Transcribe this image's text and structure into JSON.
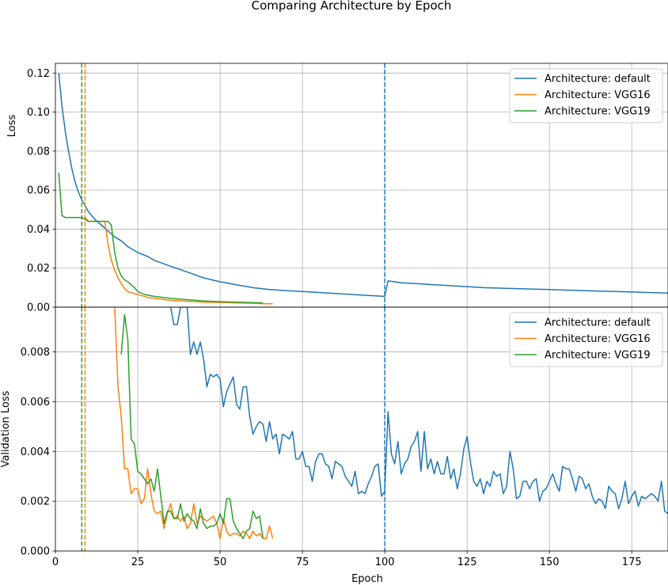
{
  "figure_title": "Comparing Architecture by Epoch",
  "colors": {
    "default": "#1f77b4",
    "VGG16": "#ff7f0e",
    "VGG19": "#2ca02c",
    "grid": "#b0b0b0",
    "axis": "#000000"
  },
  "chart_data": [
    {
      "type": "line",
      "ylabel": "Loss",
      "xlabel": "",
      "xlim": [
        0,
        186
      ],
      "ylim": [
        0,
        0.125
      ],
      "xticks": [
        0,
        25,
        50,
        75,
        100,
        125,
        150,
        175
      ],
      "yticks": [
        0.0,
        0.02,
        0.04,
        0.06,
        0.08,
        0.1,
        0.12
      ],
      "ytick_labels": [
        "0.00",
        "0.02",
        "0.04",
        "0.06",
        "0.08",
        "0.10",
        "0.12"
      ],
      "grid": true,
      "legend_position": "upper right",
      "vlines": [
        {
          "x": 8,
          "series": "VGG19",
          "style": "dashed"
        },
        {
          "x": 9,
          "series": "VGG16",
          "style": "dashed"
        },
        {
          "x": 100,
          "series": "default",
          "style": "dashed"
        }
      ],
      "series": [
        {
          "name": "Architecture: default",
          "color_key": "default",
          "x": [
            1,
            2,
            3,
            4,
            5,
            6,
            7,
            8,
            9,
            10,
            12,
            14,
            16,
            18,
            20,
            22,
            25,
            28,
            30,
            35,
            40,
            45,
            50,
            55,
            60,
            65,
            70,
            75,
            80,
            85,
            90,
            95,
            100,
            101,
            105,
            110,
            115,
            120,
            125,
            130,
            140,
            150,
            160,
            170,
            180,
            186
          ],
          "y": [
            0.12,
            0.103,
            0.09,
            0.08,
            0.071,
            0.064,
            0.059,
            0.055,
            0.052,
            0.049,
            0.045,
            0.042,
            0.039,
            0.036,
            0.034,
            0.031,
            0.028,
            0.026,
            0.024,
            0.021,
            0.018,
            0.015,
            0.013,
            0.0115,
            0.01,
            0.009,
            0.0085,
            0.008,
            0.0075,
            0.007,
            0.0065,
            0.006,
            0.0055,
            0.0135,
            0.0125,
            0.012,
            0.0115,
            0.011,
            0.0105,
            0.01,
            0.0095,
            0.009,
            0.0085,
            0.008,
            0.0075,
            0.0072
          ]
        },
        {
          "name": "Architecture: VGG16",
          "color_key": "VGG16",
          "x": [
            9,
            10,
            12,
            14,
            15,
            16,
            17,
            18,
            19,
            20,
            21,
            22,
            24,
            26,
            28,
            30,
            35,
            40,
            45,
            50,
            55,
            60,
            63,
            66
          ],
          "y": [
            0.046,
            0.044,
            0.044,
            0.044,
            0.044,
            0.032,
            0.024,
            0.019,
            0.015,
            0.012,
            0.0095,
            0.008,
            0.007,
            0.006,
            0.005,
            0.0045,
            0.0035,
            0.003,
            0.0026,
            0.0024,
            0.0022,
            0.002,
            0.0018,
            0.0017
          ]
        },
        {
          "name": "Architecture: VGG19",
          "color_key": "VGG19",
          "x": [
            1,
            2,
            3,
            5,
            7,
            8,
            10,
            12,
            14,
            16,
            17,
            18,
            19,
            20,
            21,
            22,
            24,
            25,
            27,
            30,
            35,
            40,
            45,
            50,
            55,
            60,
            63
          ],
          "y": [
            0.069,
            0.047,
            0.046,
            0.046,
            0.046,
            0.046,
            0.044,
            0.044,
            0.044,
            0.044,
            0.042,
            0.028,
            0.02,
            0.016,
            0.014,
            0.013,
            0.01,
            0.008,
            0.0065,
            0.0055,
            0.0045,
            0.0038,
            0.0032,
            0.0028,
            0.0025,
            0.0023,
            0.0022
          ]
        }
      ]
    },
    {
      "type": "line",
      "ylabel": "Validation Loss",
      "xlabel": "Epoch",
      "xlim": [
        0,
        186
      ],
      "ylim": [
        0,
        0.0098
      ],
      "xticks": [
        0,
        25,
        50,
        75,
        100,
        125,
        150,
        175
      ],
      "yticks": [
        0.0,
        0.002,
        0.004,
        0.006,
        0.008
      ],
      "ytick_labels": [
        "0.000",
        "0.002",
        "0.004",
        "0.006",
        "0.008"
      ],
      "grid": true,
      "legend_position": "upper right",
      "vlines": [
        {
          "x": 8,
          "series": "VGG19",
          "style": "dashed"
        },
        {
          "x": 9,
          "series": "VGG16",
          "style": "dashed"
        },
        {
          "x": 100,
          "series": "default",
          "style": "dashed"
        }
      ],
      "series": [
        {
          "name": "Architecture: default",
          "color_key": "default",
          "x": [
            35,
            36,
            37,
            38,
            39,
            40,
            41,
            42,
            43,
            44,
            45,
            46,
            47,
            48,
            49,
            50,
            51,
            52,
            53,
            54,
            55,
            56,
            57,
            58,
            59,
            60,
            61,
            62,
            63,
            64,
            65,
            66,
            67,
            68,
            69,
            70,
            71,
            72,
            73,
            74,
            75,
            76,
            77,
            78,
            79,
            80,
            81,
            82,
            83,
            84,
            85,
            86,
            87,
            88,
            89,
            90,
            91,
            92,
            93,
            94,
            95,
            96,
            97,
            98,
            99,
            100,
            101,
            102,
            103,
            104,
            105,
            106,
            107,
            108,
            109,
            110,
            111,
            112,
            113,
            114,
            115,
            116,
            117,
            118,
            119,
            120,
            121,
            122,
            123,
            124,
            125,
            126,
            127,
            128,
            129,
            130,
            131,
            132,
            133,
            134,
            135,
            136,
            137,
            138,
            139,
            140,
            141,
            142,
            143,
            144,
            145,
            146,
            147,
            148,
            149,
            150,
            151,
            152,
            153,
            154,
            155,
            156,
            157,
            158,
            159,
            160,
            161,
            162,
            163,
            164,
            165,
            166,
            167,
            168,
            169,
            170,
            171,
            172,
            173,
            174,
            175,
            176,
            177,
            178,
            179,
            180,
            181,
            182,
            183,
            184,
            185,
            186
          ],
          "y": [
            0.0098,
            0.0091,
            0.0091,
            0.0098,
            0.0098,
            0.0098,
            0.0079,
            0.0084,
            0.0079,
            0.0084,
            0.0077,
            0.0066,
            0.0071,
            0.007,
            0.0071,
            0.0069,
            0.0058,
            0.0064,
            0.0067,
            0.007,
            0.0059,
            0.0057,
            0.0066,
            0.0066,
            0.0054,
            0.0047,
            0.005,
            0.0052,
            0.0051,
            0.0044,
            0.0052,
            0.0045,
            0.0047,
            0.0039,
            0.0047,
            0.0046,
            0.0045,
            0.0048,
            0.0037,
            0.0037,
            0.004,
            0.0034,
            0.0034,
            0.0028,
            0.0036,
            0.0039,
            0.0039,
            0.0035,
            0.0034,
            0.0029,
            0.0036,
            0.0035,
            0.0034,
            0.003,
            0.0028,
            0.0026,
            0.0032,
            0.0023,
            0.0024,
            0.0023,
            0.0027,
            0.003,
            0.0034,
            0.0035,
            0.0022,
            0.0024,
            0.0056,
            0.0039,
            0.0035,
            0.0044,
            0.0031,
            0.0035,
            0.0037,
            0.0042,
            0.0044,
            0.0048,
            0.0032,
            0.0048,
            0.0033,
            0.0037,
            0.0031,
            0.0036,
            0.0031,
            0.0031,
            0.0038,
            0.0029,
            0.0033,
            0.0025,
            0.0031,
            0.0041,
            0.0046,
            0.0036,
            0.0028,
            0.0026,
            0.0029,
            0.0023,
            0.0028,
            0.0026,
            0.0032,
            0.003,
            0.0031,
            0.0023,
            0.0026,
            0.004,
            0.0033,
            0.0021,
            0.0022,
            0.0028,
            0.0028,
            0.0025,
            0.0028,
            0.0029,
            0.002,
            0.0024,
            0.0025,
            0.0028,
            0.0031,
            0.0027,
            0.0024,
            0.0034,
            0.0033,
            0.0033,
            0.0029,
            0.0024,
            0.003,
            0.0029,
            0.0025,
            0.0027,
            0.0022,
            0.0019,
            0.0021,
            0.002,
            0.0017,
            0.0026,
            0.0024,
            0.0023,
            0.0017,
            0.0021,
            0.0028,
            0.0019,
            0.0022,
            0.0024,
            0.0018,
            0.0022,
            0.0021,
            0.0022,
            0.0023,
            0.0022,
            0.002,
            0.0028,
            0.0016,
            0.0015
          ]
        },
        {
          "name": "Architecture: VGG16",
          "color_key": "VGG16",
          "x": [
            18,
            19,
            20,
            21,
            22,
            23,
            24,
            25,
            26,
            27,
            28,
            29,
            30,
            31,
            32,
            33,
            34,
            35,
            36,
            37,
            38,
            39,
            40,
            41,
            42,
            43,
            44,
            45,
            46,
            47,
            48,
            49,
            50,
            51,
            52,
            53,
            54,
            55,
            56,
            57,
            58,
            59,
            60,
            61,
            62,
            63,
            64,
            65,
            66
          ],
          "y": [
            0.0098,
            0.0066,
            0.0054,
            0.0033,
            0.0033,
            0.0023,
            0.0025,
            0.0025,
            0.0019,
            0.0021,
            0.0033,
            0.0023,
            0.0016,
            0.0015,
            0.0016,
            0.0009,
            0.0015,
            0.0019,
            0.0013,
            0.0014,
            0.0012,
            0.0014,
            0.0009,
            0.0011,
            0.0019,
            0.0011,
            0.0014,
            0.0013,
            0.0012,
            0.0013,
            0.0014,
            0.0011,
            0.0005,
            0.0013,
            0.0008,
            0.0006,
            0.0007,
            0.0007,
            0.0006,
            0.0008,
            0.0007,
            0.0005,
            0.0008,
            0.0006,
            0.0007,
            0.0005,
            0.0005,
            0.001,
            0.0005
          ]
        },
        {
          "name": "Architecture: VGG19",
          "color_key": "VGG19",
          "x": [
            20,
            21,
            22,
            23,
            24,
            25,
            26,
            27,
            28,
            29,
            30,
            31,
            32,
            33,
            34,
            35,
            36,
            37,
            38,
            39,
            40,
            41,
            42,
            43,
            44,
            45,
            46,
            47,
            48,
            49,
            50,
            51,
            52,
            53,
            54,
            55,
            56,
            57,
            58,
            59,
            60,
            61,
            62,
            63
          ],
          "y": [
            0.0079,
            0.0095,
            0.0085,
            0.0045,
            0.0043,
            0.0032,
            0.0031,
            0.0029,
            0.0027,
            0.0029,
            0.0024,
            0.0033,
            0.0022,
            0.0011,
            0.0016,
            0.0016,
            0.0013,
            0.0013,
            0.0019,
            0.0012,
            0.0015,
            0.0013,
            0.0012,
            0.0009,
            0.0017,
            0.0011,
            0.0009,
            0.001,
            0.001,
            0.0011,
            0.0015,
            0.0011,
            0.0021,
            0.0021,
            0.0012,
            0.0009,
            0.0007,
            0.0005,
            0.0008,
            0.0009,
            0.0016,
            0.0013,
            0.0014,
            0.0005
          ]
        }
      ]
    }
  ]
}
